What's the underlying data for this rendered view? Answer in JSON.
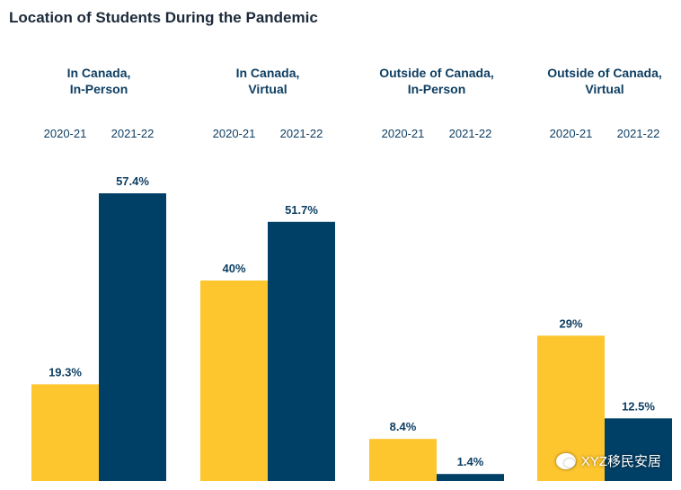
{
  "chart_data": {
    "type": "bar",
    "title": "Location of Students During the Pandemic",
    "groups": [
      {
        "label_lines": [
          "In Canada,",
          "In-Person"
        ],
        "years": [
          "2020-21",
          "2021-22"
        ],
        "values": [
          19.3,
          57.4
        ],
        "value_labels": [
          "19.3%",
          "57.4%"
        ]
      },
      {
        "label_lines": [
          "In Canada,",
          "Virtual"
        ],
        "years": [
          "2020-21",
          "2021-22"
        ],
        "values": [
          40,
          51.7
        ],
        "value_labels": [
          "40%",
          "51.7%"
        ]
      },
      {
        "label_lines": [
          "Outside of Canada,",
          "In-Person"
        ],
        "years": [
          "2020-21",
          "2021-22"
        ],
        "values": [
          8.4,
          1.4
        ],
        "value_labels": [
          "8.4%",
          "1.4%"
        ]
      },
      {
        "label_lines": [
          "Outside of Canada,",
          "Virtual"
        ],
        "years": [
          "2020-21",
          "2021-22"
        ],
        "values": [
          29,
          12.5
        ],
        "value_labels": [
          "29%",
          "12.5%"
        ]
      }
    ],
    "series": [
      {
        "name": "2020-21",
        "color": "#fdc52e"
      },
      {
        "name": "2021-22",
        "color": "#003f66"
      }
    ],
    "xlabel": "",
    "ylabel": "",
    "ylim": [
      0,
      60
    ],
    "grid": false
  },
  "watermark": {
    "text": "XYZ移民安居",
    "icon": "wechat-icon"
  }
}
